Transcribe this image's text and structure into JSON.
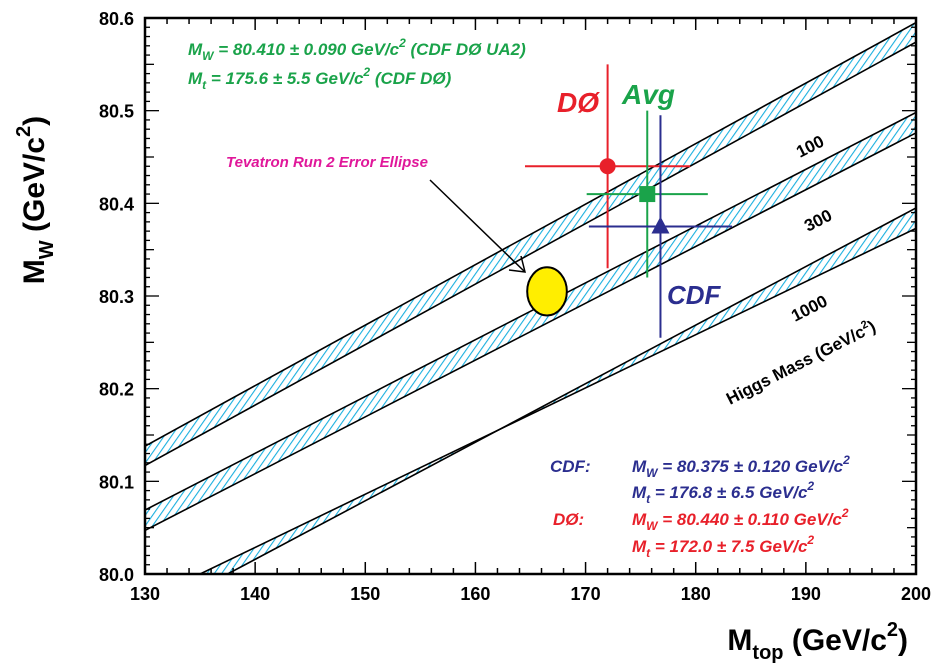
{
  "chart_data": {
    "type": "scatter",
    "xlabel": {
      "main": "M",
      "sub": "top",
      "unit": " (GeV/c",
      "sup": "2",
      "close": ")"
    },
    "ylabel": {
      "main": "M",
      "sub": "W",
      "unit": " (GeV/c",
      "sup": "2",
      "close": ")"
    },
    "xlim": [
      130,
      200
    ],
    "ylim": [
      80.0,
      80.6
    ],
    "x_ticks": [
      "130",
      "140",
      "150",
      "160",
      "170",
      "180",
      "190",
      "200"
    ],
    "y_ticks": [
      "80.0",
      "80.1",
      "80.2",
      "80.3",
      "80.4",
      "80.5",
      "80.6"
    ],
    "measurements": [
      {
        "name": "DØ",
        "mt": 172.0,
        "mt_err": 7.5,
        "mw": 80.44,
        "mw_err": 0.11,
        "color": "#e8202a",
        "marker": "circle"
      },
      {
        "name": "Avg",
        "mt": 175.6,
        "mt_err": 5.5,
        "mw": 80.41,
        "mw_err": 0.09,
        "color": "#1aa34a",
        "marker": "square"
      },
      {
        "name": "CDF",
        "mt": 176.8,
        "mt_err": 6.5,
        "mw": 80.375,
        "mw_err": 0.12,
        "color": "#2b2e8f",
        "marker": "triangle"
      }
    ],
    "ellipse": {
      "label": "Tevatron Run 2 Error Ellipse",
      "mt": 166.5,
      "mw": 80.305,
      "mt_err": 1.8,
      "mw_err": 0.026,
      "color": "#ffee00",
      "label_color": "#e0179a"
    },
    "higgs_bands": [
      {
        "label": "100",
        "lines": [
          {
            "x0": 130,
            "y0": 80.117,
            "x1": 200,
            "y1": 80.574
          },
          {
            "x0": 130,
            "y0": 80.138,
            "x1": 200,
            "y1": 80.595
          }
        ]
      },
      {
        "label": "300",
        "lines": [
          {
            "x0": 130,
            "y0": 80.047,
            "x1": 200,
            "y1": 80.476
          },
          {
            "x0": 130,
            "y0": 80.069,
            "x1": 200,
            "y1": 80.498
          }
        ]
      },
      {
        "label": "1000",
        "lines": [
          {
            "x0": 135,
            "y0": 80.0,
            "x1": 200,
            "y1": 80.373
          },
          {
            "x0": 137.5,
            "y0": 80.0,
            "x1": 200,
            "y1": 80.395
          }
        ]
      }
    ],
    "band_label_higgs": "Higgs Mass (GeV/c",
    "band_label_sup": "2",
    "band_label_close": ")",
    "band_color": "#1ab0e0"
  },
  "text": {
    "avg_mw": {
      "sym": "M",
      "sub": "W",
      "body": " = 80.410 ± 0.090 GeV/c",
      "sup": "2",
      "tail": " (CDF DØ UA2)"
    },
    "avg_mt": {
      "sym": "M",
      "sub": "t",
      "body": " = 175.6 ±  5.5 GeV/c",
      "sup": "2",
      "tail": " (CDF DØ)"
    },
    "cdf_label": "CDF:",
    "cdf_mw": {
      "sym": "M",
      "sub": "W",
      "body": " = 80.375 ± 0.120 GeV/c",
      "sup": "2"
    },
    "cdf_mt": {
      "sym": "M",
      "sub": "t",
      "body": " = 176.8 ±  6.5 GeV/c",
      "sup": "2"
    },
    "d0_label": "DØ:",
    "d0_mw": {
      "sym": "M",
      "sub": "W",
      "body": " = 80.440 ± 0.110 GeV/c",
      "sup": "2"
    },
    "d0_mt": {
      "sym": "M",
      "sub": "t",
      "body": " = 172.0 ±  7.5 GeV/c",
      "sup": "2"
    }
  },
  "colors": {
    "avg": "#1aa34a",
    "cdf": "#2b2e8f",
    "d0": "#e8202a"
  }
}
